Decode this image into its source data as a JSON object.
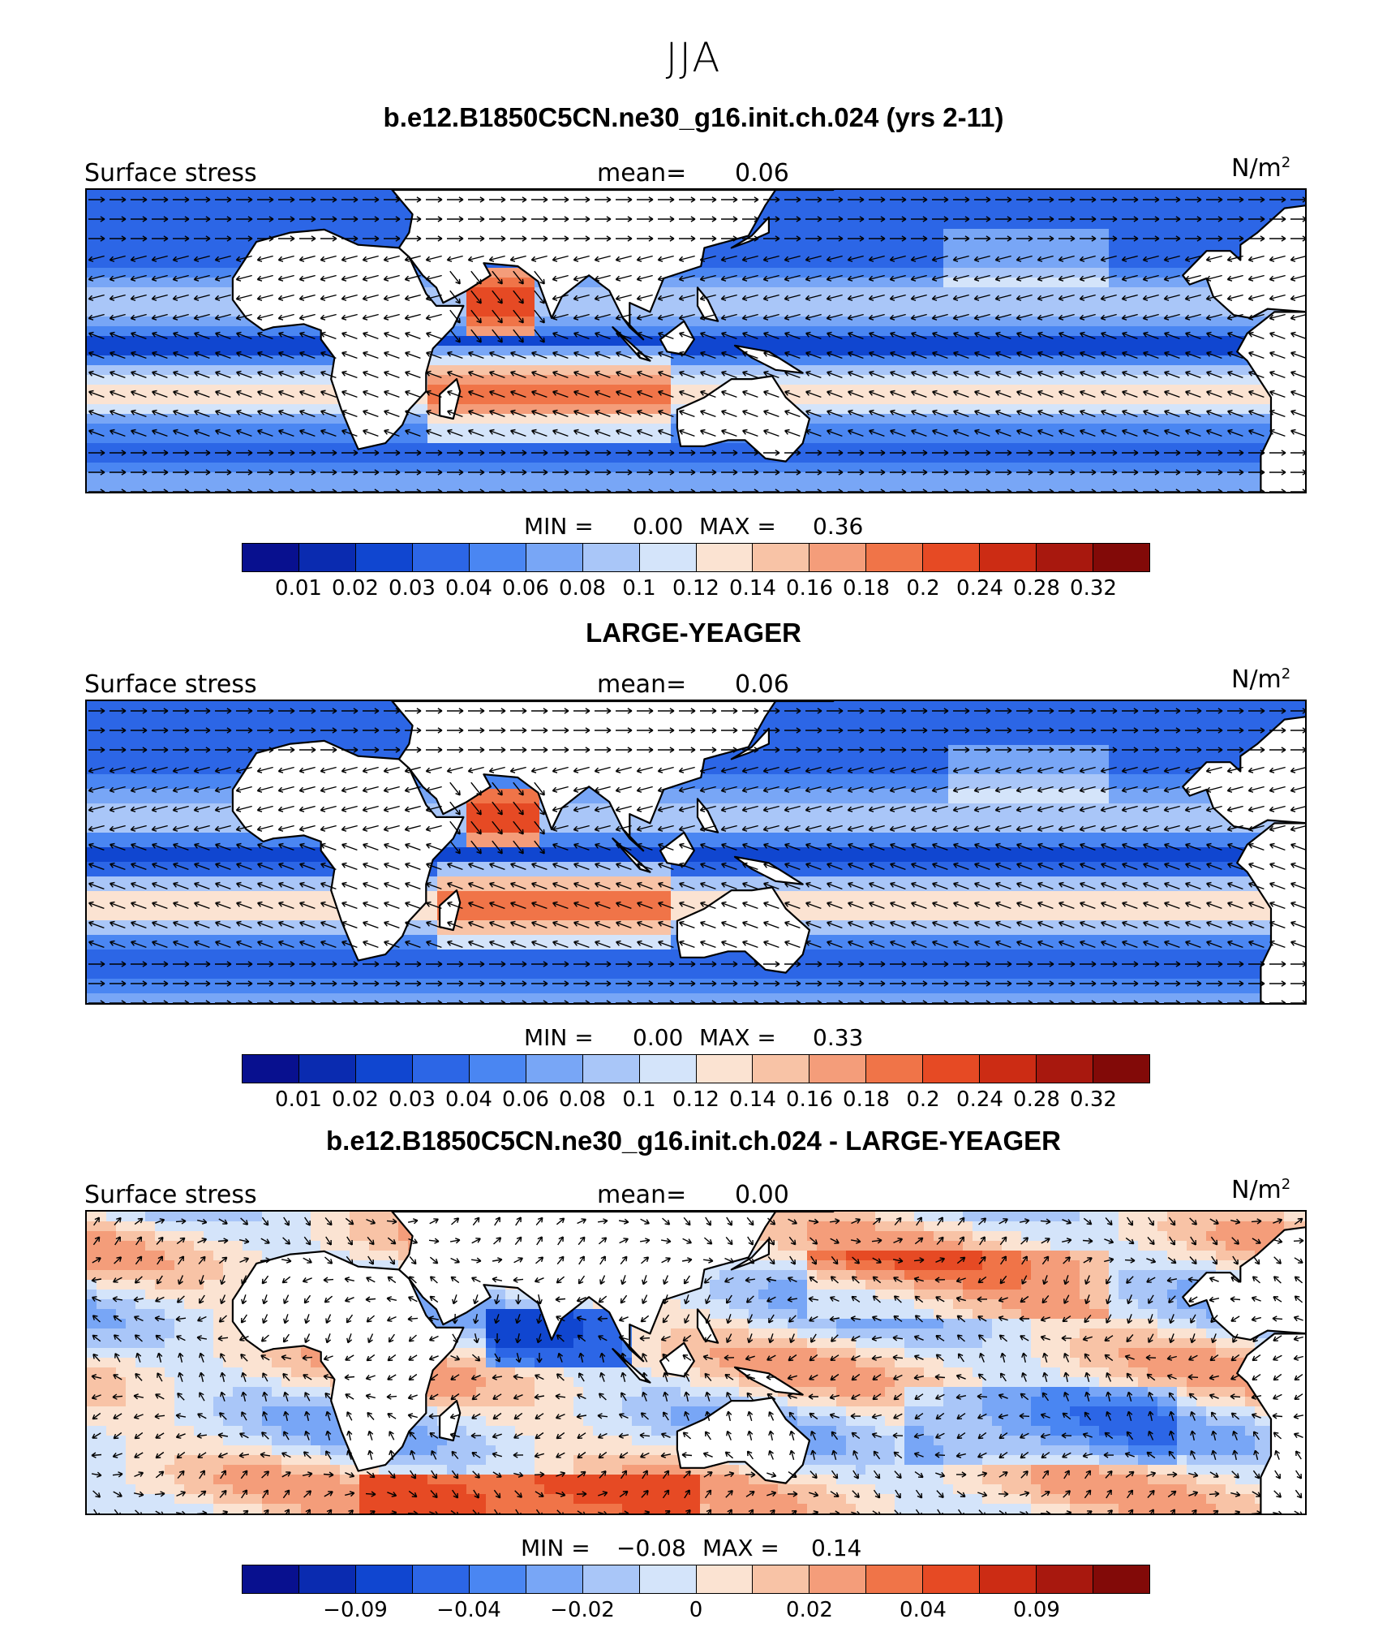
{
  "figure": {
    "season": "JJA"
  },
  "palette": [
    "#08108f",
    "#0a2bb0",
    "#1046d0",
    "#2c66e6",
    "#4a86f2",
    "#78a6f6",
    "#a9c6f8",
    "#d4e4fa",
    "#fbe3d2",
    "#f8c3a6",
    "#f49d7a",
    "#f07448",
    "#e64a24",
    "#cc2c14",
    "#a8180e",
    "#820a08"
  ],
  "chart_data": [
    {
      "type": "heatmap",
      "title": "b.e12.B1850C5CN.ne30_g16.init.ch.024 (yrs 2-11)",
      "left_label": "Surface stress",
      "mean_label": "mean=",
      "mean_value": "0.06",
      "units_base": "N/m",
      "units_exp": "2",
      "min_label": "MIN =",
      "min_value": "0.00",
      "max_label": "MAX =",
      "max_value": "0.36",
      "colorbar_ticks": [
        "0.01",
        "0.02",
        "0.03",
        "0.04",
        "0.06",
        "0.08",
        "0.1",
        "0.12",
        "0.14",
        "0.16",
        "0.18",
        "0.2",
        "0.24",
        "0.28",
        "0.32"
      ],
      "variable": "surface wind stress magnitude with stress vectors",
      "vectors": true
    },
    {
      "type": "heatmap",
      "title": "LARGE-YEAGER",
      "left_label": "Surface stress",
      "mean_label": "mean=",
      "mean_value": "0.06",
      "units_base": "N/m",
      "units_exp": "2",
      "min_label": "MIN =",
      "min_value": "0.00",
      "max_label": "MAX =",
      "max_value": "0.33",
      "colorbar_ticks": [
        "0.01",
        "0.02",
        "0.03",
        "0.04",
        "0.06",
        "0.08",
        "0.1",
        "0.12",
        "0.14",
        "0.16",
        "0.18",
        "0.2",
        "0.24",
        "0.28",
        "0.32"
      ],
      "variable": "surface wind stress magnitude with stress vectors",
      "vectors": true
    },
    {
      "type": "heatmap",
      "title": "b.e12.B1850C5CN.ne30_g16.init.ch.024 - LARGE-YEAGER",
      "left_label": "Surface stress",
      "mean_label": "mean=",
      "mean_value": "0.00",
      "units_base": "N/m",
      "units_exp": "2",
      "min_label": "MIN =",
      "min_value": "−0.08",
      "max_label": "MAX =",
      "max_value": "0.14",
      "colorbar_ticks": [
        "−0.09",
        "−0.04",
        "−0.02",
        "0",
        "0.02",
        "0.04",
        "0.09"
      ],
      "variable": "difference in surface wind stress with stress vectors",
      "vectors": true
    }
  ]
}
